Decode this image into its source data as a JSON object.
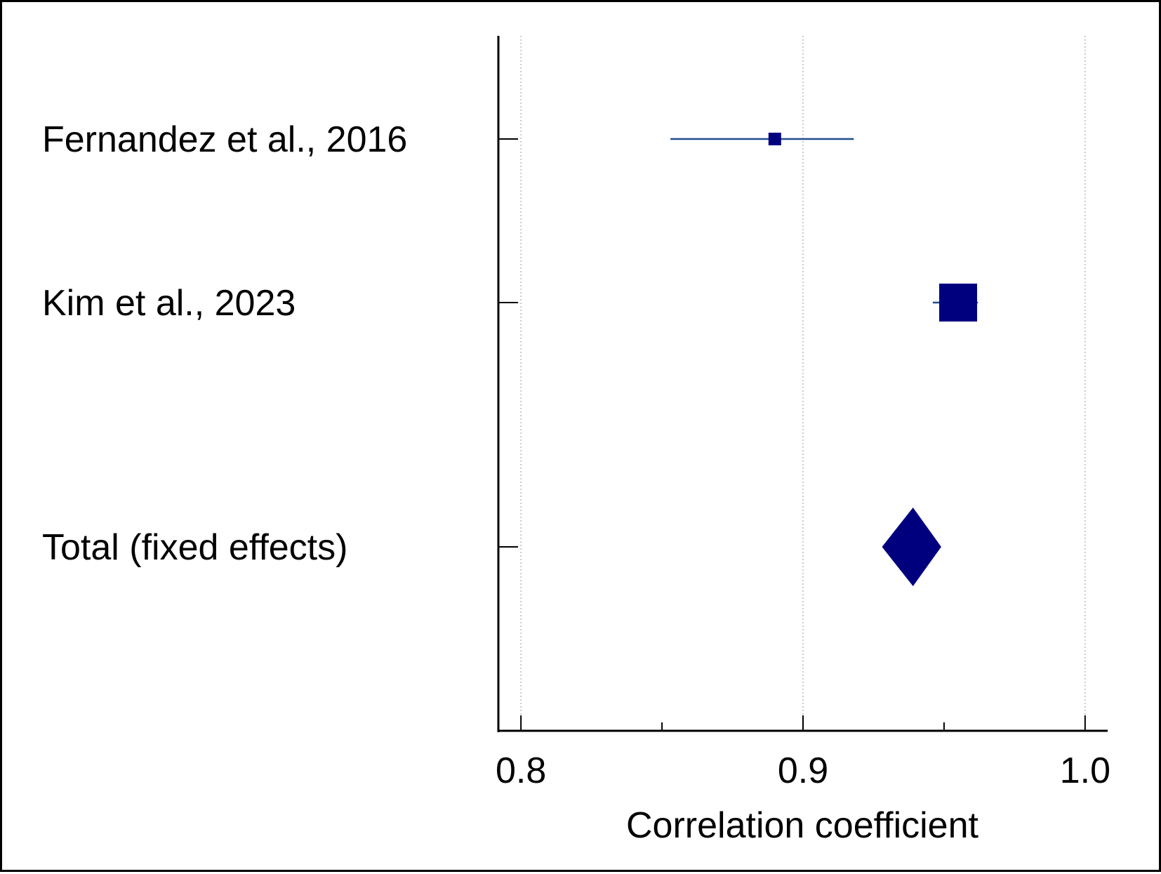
{
  "chart_data": {
    "type": "forest",
    "xlabel": "Correlation coefficient",
    "xlim": [
      0.792,
      1.008
    ],
    "xticks": [
      0.8,
      0.9,
      1.0
    ],
    "xtick_labels": [
      "0.8",
      "0.9",
      "1.0"
    ],
    "minor_xticks": [
      0.85,
      0.95
    ],
    "grid": true,
    "studies": [
      {
        "label": "Fernandez et al., 2016",
        "estimate": 0.89,
        "ci_low": 0.853,
        "ci_high": 0.918,
        "weight": "small"
      },
      {
        "label": "Kim et al., 2023",
        "estimate": 0.955,
        "ci_low": 0.946,
        "ci_high": 0.962,
        "weight": "large"
      }
    ],
    "total": {
      "label": "Total (fixed effects)",
      "estimate": 0.939,
      "ci_low": 0.928,
      "ci_high": 0.949
    },
    "colors": {
      "marker": "#00007f",
      "ci_line": "#1f4e8c",
      "axis": "#000000",
      "grid": "#bbbbbb"
    }
  }
}
